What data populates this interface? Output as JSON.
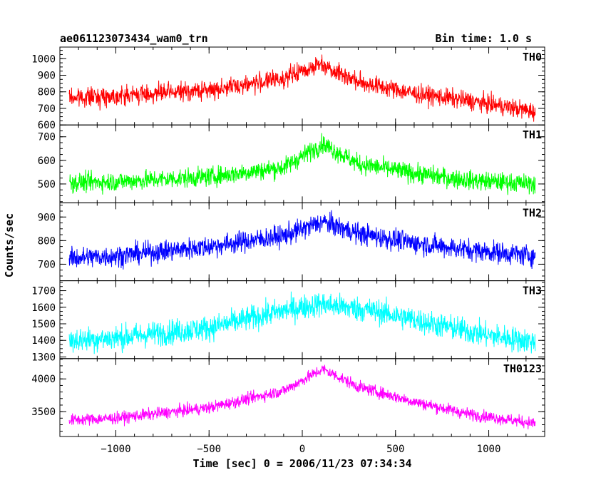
{
  "header": {
    "title": "ae061123073434_wam0_trn",
    "bin_time": "Bin time: 1.0 s"
  },
  "chart_data": {
    "type": "line",
    "title": "ae061123073434_wam0_trn",
    "ylabel": "Counts/sec",
    "xlabel": "Time [sec] 0 = 2006/11/23 07:34:34",
    "xlim": [
      -1300,
      1300
    ],
    "x_ticks": [
      -1000,
      -500,
      0,
      500,
      1000
    ],
    "x_tick_labels": [
      "−1000",
      "−500",
      "0",
      "500",
      "1000"
    ],
    "x_range_data": [
      -1250,
      1250
    ],
    "panels": [
      {
        "name": "TH0",
        "color": "#ff0000",
        "ylim": [
          600,
          1070
        ],
        "yticks": [
          600,
          700,
          800,
          900,
          1000
        ],
        "profile": [
          [
            -1250,
            765
          ],
          [
            -1000,
            775
          ],
          [
            -500,
            810
          ],
          [
            -100,
            880
          ],
          [
            100,
            970
          ],
          [
            300,
            860
          ],
          [
            600,
            790
          ],
          [
            900,
            745
          ],
          [
            1250,
            680
          ]
        ],
        "noise": 55
      },
      {
        "name": "TH1",
        "color": "#00ff00",
        "ylim": [
          420,
          750
        ],
        "yticks": [
          500,
          600,
          700
        ],
        "profile": [
          [
            -1250,
            505
          ],
          [
            -1000,
            510
          ],
          [
            -500,
            530
          ],
          [
            -100,
            570
          ],
          [
            110,
            670
          ],
          [
            300,
            585
          ],
          [
            600,
            545
          ],
          [
            900,
            515
          ],
          [
            1250,
            500
          ]
        ],
        "noise": 40
      },
      {
        "name": "TH2",
        "color": "#0000ff",
        "ylim": [
          630,
          960
        ],
        "yticks": [
          700,
          800,
          900
        ],
        "profile": [
          [
            -1250,
            725
          ],
          [
            -1000,
            735
          ],
          [
            -500,
            775
          ],
          [
            -100,
            820
          ],
          [
            110,
            880
          ],
          [
            300,
            830
          ],
          [
            600,
            790
          ],
          [
            900,
            760
          ],
          [
            1250,
            735
          ]
        ],
        "noise": 45
      },
      {
        "name": "TH3",
        "color": "#00ffff",
        "ylim": [
          1290,
          1760
        ],
        "yticks": [
          1300,
          1400,
          1500,
          1600,
          1700
        ],
        "profile": [
          [
            -1250,
            1400
          ],
          [
            -1000,
            1415
          ],
          [
            -500,
            1475
          ],
          [
            -100,
            1580
          ],
          [
            100,
            1620
          ],
          [
            400,
            1575
          ],
          [
            700,
            1500
          ],
          [
            1000,
            1430
          ],
          [
            1250,
            1390
          ]
        ],
        "noise": 75
      },
      {
        "name": "TH0123",
        "color": "#ff00ff",
        "ylim": [
          3120,
          4310
        ],
        "yticks": [
          3500,
          4000
        ],
        "profile": [
          [
            -1250,
            3370
          ],
          [
            -1000,
            3400
          ],
          [
            -500,
            3560
          ],
          [
            -100,
            3820
          ],
          [
            110,
            4150
          ],
          [
            300,
            3880
          ],
          [
            600,
            3650
          ],
          [
            900,
            3460
          ],
          [
            1250,
            3320
          ]
        ],
        "noise": 90
      }
    ]
  }
}
